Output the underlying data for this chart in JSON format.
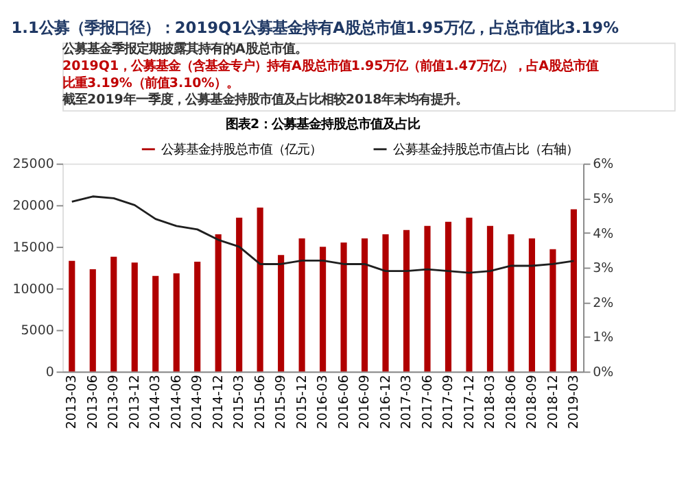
{
  "chart_data": {
    "type": "bar",
    "title": "1.1公募（季报口径）：2019Q1公募基金持有A股总市值1.95万亿，占总市值比3.19%",
    "subtitle": "图表2：公募基金持股总市值及占比",
    "annotations": [
      "公募基金季报定期披露其持有的A股总市值。",
      "2019Q1，公募基金（含基金专户）持有A股总市值1.95万亿（前值1.47万亿），占A股总市值比重3.19%（前值3.10%）。",
      "截至2019年一季度，公募基金持股市值及占比相较2018年末均有提升。"
    ],
    "categories": [
      "2013-03",
      "2013-06",
      "2013-09",
      "2013-12",
      "2014-03",
      "2014-06",
      "2014-09",
      "2014-12",
      "2015-03",
      "2015-06",
      "2015-09",
      "2015-12",
      "2016-03",
      "2016-06",
      "2016-09",
      "2016-12",
      "2017-03",
      "2017-06",
      "2017-09",
      "2017-12",
      "2018-03",
      "2018-06",
      "2018-09",
      "2018-12",
      "2019-03"
    ],
    "series": [
      {
        "name": "公募基金持股总市值（亿元）",
        "color": "#b00000",
        "values": [
          13300,
          12300,
          13800,
          13100,
          11500,
          11800,
          13200,
          16500,
          18500,
          19700,
          14000,
          16000,
          15000,
          15500,
          16000,
          16500,
          17000,
          17500,
          18000,
          18500,
          17500,
          16500,
          16000,
          14700,
          19500
        ]
      },
      {
        "name": "公募基金持股总市值占比（右轴）",
        "type": "line",
        "axis": "y2",
        "color": "#1f1f1f",
        "values": [
          4.9,
          5.05,
          5.0,
          4.8,
          4.4,
          4.2,
          4.1,
          3.8,
          3.6,
          3.1,
          3.1,
          3.2,
          3.2,
          3.1,
          3.1,
          2.9,
          2.9,
          2.95,
          2.9,
          2.85,
          2.9,
          3.05,
          3.05,
          3.1,
          3.19
        ]
      }
    ],
    "ylim": [
      0,
      25000
    ],
    "yticks": [
      0,
      5000,
      10000,
      15000,
      20000,
      25000
    ],
    "y2lim": [
      0,
      6
    ],
    "y2ticks": [
      {
        "value": 0,
        "label": "0%"
      },
      {
        "value": 1,
        "label": "1%"
      },
      {
        "value": 2,
        "label": "2%"
      },
      {
        "value": 3,
        "label": "3%"
      },
      {
        "value": 4,
        "label": "4%"
      },
      {
        "value": 5,
        "label": "5%"
      },
      {
        "value": 6,
        "label": "6%"
      }
    ],
    "legend": "top"
  }
}
